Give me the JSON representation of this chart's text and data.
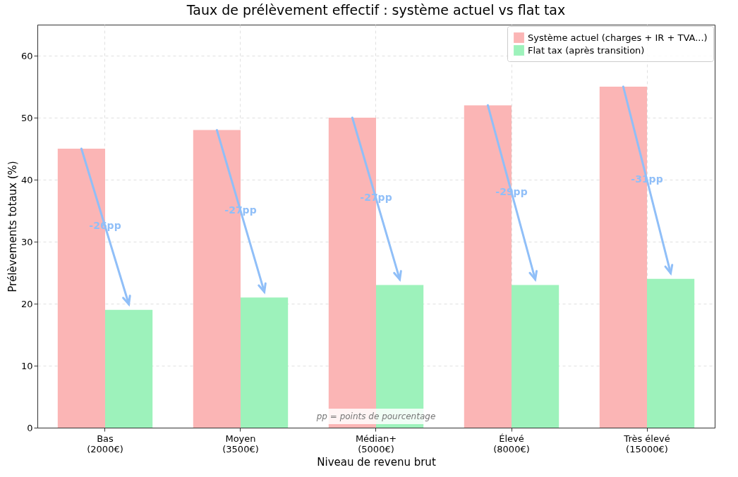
{
  "chart_data": {
    "type": "bar",
    "title": "Taux de prélèvement effectif : système actuel vs flat tax",
    "xlabel": "Niveau de revenu brut",
    "ylabel": "Prélèvements totaux (%)",
    "categories": [
      "Bas\n(2000€)",
      "Moyen\n(3500€)",
      "Médian+\n(5000€)",
      "Élevé\n(8000€)",
      "Très élevé\n(15000€)"
    ],
    "series": [
      {
        "name": "Système actuel (charges + IR + TVA...)",
        "color": "#fbb5b5",
        "values": [
          45,
          48,
          50,
          52,
          55
        ]
      },
      {
        "name": "Flat tax (après transition)",
        "color": "#9df2bb",
        "values": [
          19,
          21,
          23,
          23,
          24
        ]
      }
    ],
    "ylim": [
      0,
      65
    ],
    "yticks": [
      0,
      10,
      20,
      30,
      40,
      50,
      60
    ],
    "grid": true,
    "legend": "top right",
    "annotations": [
      {
        "text": "-26pp",
        "x": "Bas\n(2000€)",
        "y": 32.5
      },
      {
        "text": "-27pp",
        "x": "Moyen\n(3500€)",
        "y": 35
      },
      {
        "text": "-27pp",
        "x": "Médian+\n(5000€)",
        "y": 37
      },
      {
        "text": "-29pp",
        "x": "Élevé\n(8000€)",
        "y": 38
      },
      {
        "text": "-31pp",
        "x": "Très élevé\n(15000€)",
        "y": 40
      },
      "pp = points de pourcentage"
    ]
  }
}
